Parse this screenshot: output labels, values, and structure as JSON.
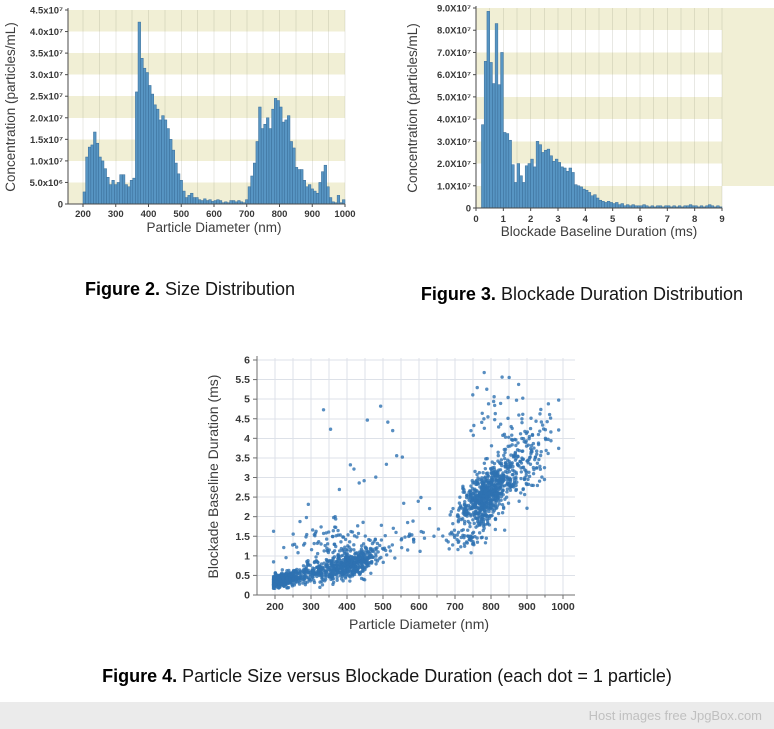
{
  "page": {
    "background": "#ffffff"
  },
  "captions": {
    "fig2": {
      "label": "Figure 2.",
      "text": " Size Distribution"
    },
    "fig3": {
      "label": "Figure 3.",
      "text": " Blockade Duration Distribution"
    },
    "fig4": {
      "label": "Figure 4.",
      "text": " Particle Size versus Blockade Duration (each dot = 1 particle)"
    }
  },
  "footer": {
    "text": "Host images free JpgBox.com",
    "background": "#ebebeb",
    "color": "#c0c0c0"
  },
  "style": {
    "bar_fill": "#5795c3",
    "bar_edge": "#386c97",
    "stripe_cream": "#f1efd5",
    "hist_grid": "rgba(130,130,105,0.18)",
    "axis_color": "#4a4a4a",
    "tick_color": "#383838",
    "dot_color": "#2e72b2",
    "scatter_grid": "#dde1e8",
    "scatter_axis": "#6f6f6f"
  },
  "chart_data": [
    {
      "id": "fig2",
      "type": "bar",
      "title": "Size Distribution",
      "xlabel": "Particle Diameter (nm)",
      "ylabel": "Concentration (particles/mL)",
      "xlim": [
        155,
        1005
      ],
      "ylim": [
        0,
        45000000
      ],
      "x_grid_step": 50,
      "stripe_step": 5000000,
      "x_ticks": [
        {
          "v": 200,
          "label": "200"
        },
        {
          "v": 300,
          "label": "300"
        },
        {
          "v": 400,
          "label": "400"
        },
        {
          "v": 500,
          "label": "500"
        },
        {
          "v": 600,
          "label": "600"
        },
        {
          "v": 700,
          "label": "700"
        },
        {
          "v": 800,
          "label": "800"
        },
        {
          "v": 900,
          "label": "900"
        },
        {
          "v": 1000,
          "label": "1000"
        }
      ],
      "y_ticks": [
        {
          "v": 0,
          "label": "0"
        },
        {
          "v": 5000000,
          "label": "5.0x10⁶"
        },
        {
          "v": 10000000,
          "label": "1.0x10⁷"
        },
        {
          "v": 15000000,
          "label": "1.5x10⁷"
        },
        {
          "v": 20000000,
          "label": "2.0x10⁷"
        },
        {
          "v": 25000000,
          "label": "2.5x10⁷"
        },
        {
          "v": 30000000,
          "label": "3.0x10⁷"
        },
        {
          "v": 35000000,
          "label": "3.5x10⁷"
        },
        {
          "v": 40000000,
          "label": "4.0x10⁷"
        },
        {
          "v": 45000000,
          "label": "4.5x10⁷"
        }
      ],
      "bin_start": 200,
      "bin_width": 8,
      "value_unit": 1000000,
      "values": [
        2.8,
        10.9,
        13.2,
        13.7,
        16.7,
        14.1,
        10.9,
        10,
        8.2,
        6.2,
        4.5,
        5.5,
        4.5,
        5,
        6.8,
        6.8,
        4.5,
        4,
        5.5,
        6,
        26,
        42.2,
        33.8,
        31.5,
        30.5,
        27.5,
        25.5,
        23,
        22,
        19.5,
        20.5,
        19.5,
        17.5,
        15,
        12.5,
        9.5,
        7,
        5.5,
        3,
        1.5,
        2,
        2.5,
        1.5,
        1.5,
        1,
        0.8,
        1.2,
        0.8,
        1,
        0.6,
        0.8,
        1,
        0.8,
        0.3,
        0.5,
        0.3,
        0.8,
        0.8,
        0.5,
        0.8,
        0.5,
        0.3,
        1,
        4,
        6.5,
        9.5,
        14.5,
        22.5,
        17.5,
        18.5,
        20,
        17.5,
        22,
        24.5,
        24,
        22.5,
        19,
        19.5,
        20.5,
        14.5,
        13,
        8.5,
        8,
        8,
        5.5,
        4,
        4.5,
        3.5,
        3,
        2.5,
        5,
        7.5,
        9,
        4,
        1.5,
        0.5,
        0.3,
        2,
        0.3,
        1
      ]
    },
    {
      "id": "fig3",
      "type": "bar",
      "title": "Blockade Duration Distribution",
      "xlabel": "Blockade Baseline Duration (ms)",
      "ylabel": "Concentration (particles/mL)",
      "xlim": [
        0,
        9
      ],
      "ylim": [
        0,
        90000000
      ],
      "x_grid_step": 0.5,
      "stripe_step": 10000000,
      "x_ticks": [
        {
          "v": 0,
          "label": "0"
        },
        {
          "v": 1,
          "label": "1"
        },
        {
          "v": 2,
          "label": "2"
        },
        {
          "v": 3,
          "label": "3"
        },
        {
          "v": 4,
          "label": "4"
        },
        {
          "v": 5,
          "label": "5"
        },
        {
          "v": 6,
          "label": "6"
        },
        {
          "v": 7,
          "label": "7"
        },
        {
          "v": 8,
          "label": "8"
        },
        {
          "v": 9,
          "label": "9"
        }
      ],
      "y_ticks": [
        {
          "v": 0,
          "label": "0"
        },
        {
          "v": 10000000,
          "label": "1.0X10⁷"
        },
        {
          "v": 20000000,
          "label": "2.0X10⁷"
        },
        {
          "v": 30000000,
          "label": "3.0X10⁷"
        },
        {
          "v": 40000000,
          "label": "4.0X10⁷"
        },
        {
          "v": 50000000,
          "label": "5.0X10⁷"
        },
        {
          "v": 60000000,
          "label": "6.0X10⁷"
        },
        {
          "v": 70000000,
          "label": "7.0X10⁷"
        },
        {
          "v": 80000000,
          "label": "8.0X10⁷"
        },
        {
          "v": 90000000,
          "label": "9.0X10⁷"
        }
      ],
      "bin_start": 0.2,
      "bin_width": 0.1,
      "value_unit": 10000000,
      "values": [
        3.75,
        6.6,
        8.85,
        6.55,
        5.6,
        8.3,
        5.55,
        7.0,
        3.4,
        3.35,
        3.05,
        1.95,
        1.15,
        2.0,
        1.45,
        1.15,
        1.9,
        2.0,
        2.2,
        1.85,
        3.0,
        2.85,
        2.5,
        2.6,
        2.65,
        2.35,
        2.1,
        2.2,
        2.05,
        1.85,
        1.8,
        1.65,
        1.8,
        1.6,
        1.05,
        1.0,
        0.95,
        0.85,
        0.8,
        0.7,
        0.55,
        0.6,
        0.45,
        0.35,
        0.3,
        0.25,
        0.3,
        0.25,
        0.2,
        0.25,
        0.15,
        0.2,
        0.1,
        0.15,
        0.1,
        0.15,
        0.1,
        0.1,
        0.1,
        0.15,
        0.1,
        0.05,
        0.1,
        0.05,
        0.1,
        0.1,
        0.05,
        0.1,
        0.1,
        0.05,
        0.1,
        0.05,
        0.1,
        0.05,
        0.1,
        0.1,
        0.15,
        0.1,
        0.1,
        0.05,
        0.1,
        0.05,
        0.1,
        0.15,
        0.1,
        0.05,
        0.1,
        0.05
      ]
    },
    {
      "id": "fig4",
      "type": "scatter",
      "title": "Particle Size versus Blockade Duration",
      "xlabel": "Particle Diameter (nm)",
      "ylabel": "Blockade Baseline Duration (ms)",
      "xlim": [
        150,
        1020
      ],
      "ylim": [
        0,
        6
      ],
      "x_grid_step": 50,
      "y_grid_step": 0.5,
      "x_ticks": [
        {
          "v": 200,
          "label": "200"
        },
        {
          "v": 300,
          "label": "300"
        },
        {
          "v": 400,
          "label": "400"
        },
        {
          "v": 500,
          "label": "500"
        },
        {
          "v": 600,
          "label": "600"
        },
        {
          "v": 700,
          "label": "700"
        },
        {
          "v": 800,
          "label": "800"
        },
        {
          "v": 900,
          "label": "900"
        },
        {
          "v": 1000,
          "label": "1000"
        }
      ],
      "y_ticks": [
        {
          "v": 0,
          "label": "0"
        },
        {
          "v": 0.5,
          "label": "0.5"
        },
        {
          "v": 1,
          "label": "1"
        },
        {
          "v": 1.5,
          "label": "1.5"
        },
        {
          "v": 2,
          "label": "2"
        },
        {
          "v": 2.5,
          "label": "2.5"
        },
        {
          "v": 3,
          "label": "3"
        },
        {
          "v": 3.5,
          "label": "3.5"
        },
        {
          "v": 4,
          "label": "4"
        },
        {
          "v": 4.5,
          "label": "4.5"
        },
        {
          "v": 5,
          "label": "5"
        },
        {
          "v": 5.5,
          "label": "5.5"
        },
        {
          "v": 6,
          "label": "6"
        }
      ],
      "clusters": [
        {
          "cx": 224,
          "cy": 0.38,
          "sx": 18,
          "sy": 0.09,
          "rho": 0.35,
          "n": 330
        },
        {
          "cx": 295,
          "cy": 0.55,
          "sx": 38,
          "sy": 0.16,
          "rho": 0.5,
          "n": 170
        },
        {
          "cx": 408,
          "cy": 0.78,
          "sx": 40,
          "sy": 0.21,
          "rho": 0.55,
          "n": 470
        },
        {
          "cx": 360,
          "cy": 1.3,
          "sx": 70,
          "sy": 0.33,
          "rho": 0.35,
          "n": 90
        },
        {
          "cx": 430,
          "cy": 3.3,
          "sx": 85,
          "sy": 1.0,
          "rho": 0.15,
          "n": 20
        },
        {
          "cx": 580,
          "cy": 1.6,
          "sx": 55,
          "sy": 0.45,
          "rho": 0.3,
          "n": 28
        },
        {
          "cx": 783,
          "cy": 2.5,
          "sx": 38,
          "sy": 0.42,
          "rho": 0.65,
          "n": 600
        },
        {
          "cx": 868,
          "cy": 3.25,
          "sx": 48,
          "sy": 0.6,
          "rho": 0.45,
          "n": 210
        },
        {
          "cx": 855,
          "cy": 4.7,
          "sx": 60,
          "sy": 0.5,
          "rho": 0.2,
          "n": 40
        },
        {
          "cx": 738,
          "cy": 1.5,
          "sx": 28,
          "sy": 0.18,
          "rho": 0.3,
          "n": 45
        }
      ]
    }
  ]
}
